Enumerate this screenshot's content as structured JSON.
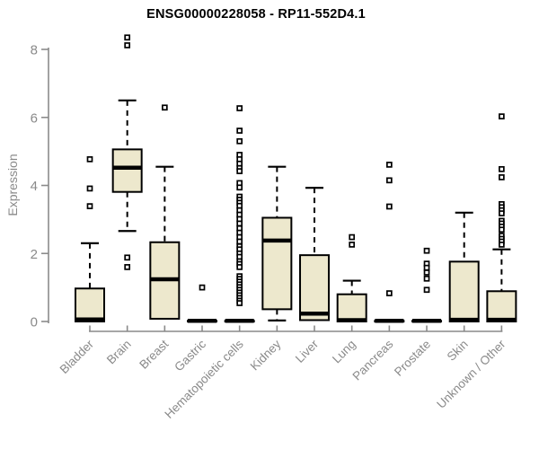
{
  "chart_data": {
    "type": "boxplot",
    "title": "ENSG00000228058 - RP11-552D4.1",
    "xlabel": "",
    "ylabel": "Expression",
    "ylim": [
      0,
      8
    ],
    "y_ticks": [
      0,
      2,
      4,
      6,
      8
    ],
    "grid": false,
    "legend": null,
    "categories": [
      "Bladder",
      "Brain",
      "Breast",
      "Gastric",
      "Hematopoietic cells",
      "Kidney",
      "Liver",
      "Lung",
      "Pancreas",
      "Prostate",
      "Skin",
      "Unknown / Other"
    ],
    "series": [
      {
        "name": "Bladder",
        "whisker_low": 0,
        "q1": 0,
        "median": 0.06,
        "q3": 0.97,
        "whisker_high": 2.3,
        "outliers": [
          4.77,
          3.91,
          3.39
        ]
      },
      {
        "name": "Brain",
        "whisker_low": 2.66,
        "q1": 3.81,
        "median": 4.52,
        "q3": 5.06,
        "whisker_high": 6.5,
        "outliers": [
          8.35,
          8.12,
          1.88,
          1.6
        ]
      },
      {
        "name": "Breast",
        "whisker_low": 0.08,
        "q1": 0.08,
        "median": 1.24,
        "q3": 2.33,
        "whisker_high": 4.55,
        "outliers": [
          6.29
        ]
      },
      {
        "name": "Gastric",
        "whisker_low": 0,
        "q1": 0,
        "median": 0.02,
        "q3": 0.02,
        "whisker_high": 0.02,
        "outliers": [
          1.0
        ]
      },
      {
        "name": "Hematopoietic cells",
        "whisker_low": 0,
        "q1": 0,
        "median": 0.02,
        "q3": 0.02,
        "whisker_high": 0.02,
        "outliers": [
          6.27,
          5.61,
          5.3,
          4.9,
          4.77,
          4.64,
          4.51,
          4.42,
          4.07,
          3.94,
          3.67,
          3.58,
          3.49,
          3.4,
          3.27,
          3.14,
          3.01,
          2.88,
          2.74,
          2.61,
          2.48,
          2.35,
          2.21,
          2.12,
          2.0,
          1.9,
          1.77,
          1.69,
          1.6,
          1.33,
          1.25,
          1.17,
          1.09,
          1.01,
          0.93,
          0.85,
          0.77,
          0.69,
          0.61,
          0.54
        ]
      },
      {
        "name": "Kidney",
        "whisker_low": 0.03,
        "q1": 0.36,
        "median": 2.38,
        "q3": 3.05,
        "whisker_high": 4.55,
        "outliers": []
      },
      {
        "name": "Liver",
        "whisker_low": 0.04,
        "q1": 0.04,
        "median": 0.23,
        "q3": 1.95,
        "whisker_high": 3.93,
        "outliers": []
      },
      {
        "name": "Lung",
        "whisker_low": 0,
        "q1": 0,
        "median": 0.04,
        "q3": 0.8,
        "whisker_high": 1.2,
        "outliers": [
          2.48,
          2.26
        ]
      },
      {
        "name": "Pancreas",
        "whisker_low": 0,
        "q1": 0,
        "median": 0.02,
        "q3": 0.02,
        "whisker_high": 0.02,
        "outliers": [
          4.61,
          4.15,
          3.38,
          0.83
        ]
      },
      {
        "name": "Prostate",
        "whisker_low": 0,
        "q1": 0,
        "median": 0.02,
        "q3": 0.02,
        "whisker_high": 0.02,
        "outliers": [
          2.08,
          1.7,
          1.58,
          1.44,
          1.26,
          0.93
        ]
      },
      {
        "name": "Skin",
        "whisker_low": 0,
        "q1": 0,
        "median": 0.05,
        "q3": 1.76,
        "whisker_high": 3.2,
        "outliers": []
      },
      {
        "name": "Unknown / Other",
        "whisker_low": 0,
        "q1": 0,
        "median": 0.05,
        "q3": 0.89,
        "whisker_high": 2.12,
        "outliers": [
          6.03,
          4.48,
          4.24,
          3.45,
          3.36,
          3.27,
          3.18,
          2.96,
          2.88,
          2.79,
          2.7,
          2.52,
          2.43,
          2.35,
          2.26
        ]
      }
    ]
  },
  "colors": {
    "box_fill": "#EDE8CD",
    "box_border": "#000000",
    "median": "#000000",
    "whisker": "#000000",
    "outlier_fill": "#FFFFFF",
    "outlier_border": "#000000",
    "axis": "#8a8a8a",
    "tick_label": "#8a8a8a",
    "title": "#000000",
    "background": "#FFFFFF"
  }
}
